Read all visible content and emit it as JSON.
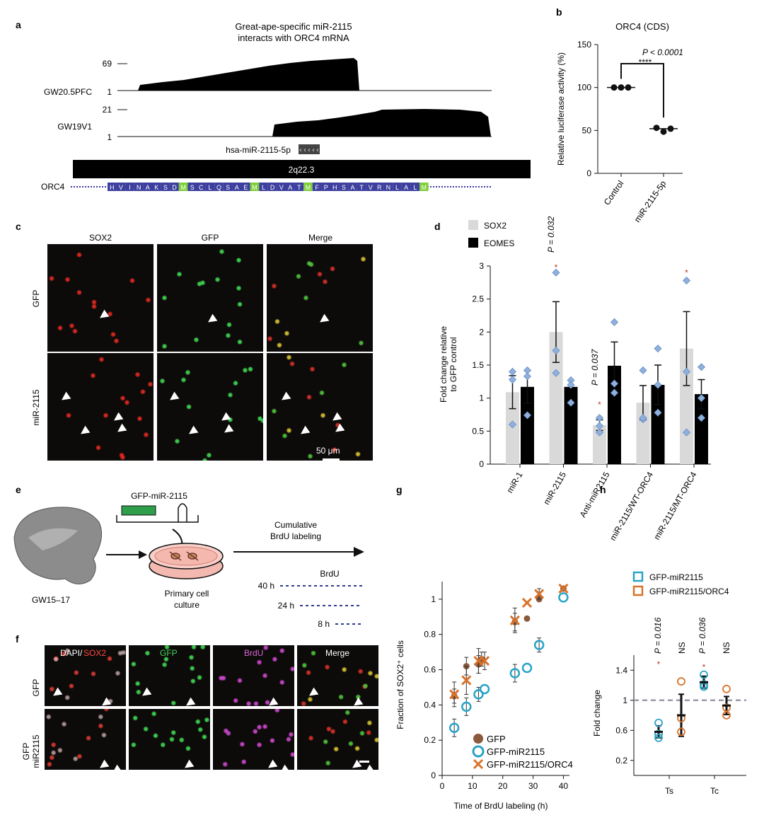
{
  "panels": {
    "a": {
      "letter": "a",
      "title_line1": "Great-ape-specific miR-2115",
      "title_line2": "interacts with ORC4 mRNA",
      "track1_name": "GW20.5PFC",
      "track1_max": "69",
      "track1_min": "1",
      "track2_name": "GW19V1",
      "track2_max": "21",
      "track2_min": "1",
      "mirna_label": "hsa-miR-2115-5p",
      "band_label": "2q22.3",
      "gene_label": "ORC4",
      "aa_sequence": [
        "H",
        "V",
        "I",
        "N",
        "A",
        "K",
        "S",
        "D",
        "M",
        "S",
        "C",
        "L",
        "Q",
        "S",
        "A",
        "E",
        "M",
        "L",
        "D",
        "V",
        "A",
        "T",
        "M",
        "F",
        "P",
        "H",
        "S",
        "A",
        "T",
        "V",
        "R",
        "N",
        "L",
        "A",
        "L",
        "M"
      ]
    },
    "b": {
      "letter": "b",
      "title": "ORC4 (CDS)",
      "ylabel": "Relative luciferase activity (%)",
      "pvalue": "P < 0.0001",
      "stars": "****"
    },
    "c": {
      "letter": "c",
      "col_labels": [
        "SOX2",
        "GFP",
        "Merge"
      ],
      "row_labels": [
        "GFP",
        "miR-2115"
      ],
      "scalebar": "50 μm"
    },
    "d": {
      "letter": "d",
      "ylabel_line1": "Fold change relative",
      "ylabel_line2": "to GFP control",
      "legend": [
        "SOX2",
        "EOMES"
      ],
      "p1": "P = 0.032",
      "p2": "P = 0.037",
      "star": "*"
    },
    "e": {
      "letter": "e",
      "construct": "GFP-miR-2115",
      "age": "GW15–17",
      "culture_line1": "Primary cell",
      "culture_line2": "culture",
      "arrow_line1": "Cumulative",
      "arrow_line2": "BrdU labeling",
      "brdu_title": "BrdU",
      "times": [
        "40 h",
        "24 h",
        "8 h"
      ]
    },
    "f": {
      "letter": "f",
      "col_labels": [
        "DAPI/",
        "SOX2",
        "GFP",
        "BrdU",
        "Merge"
      ],
      "row_labels": [
        "GFP",
        "GFP",
        "miR2115"
      ]
    },
    "g": {
      "letter": "g",
      "ylabel": "Fraction of SOX2⁺ cells",
      "xlabel": "Time of BrdU labeling (h)"
    },
    "h": {
      "letter": "h",
      "ylabel": "Fold change",
      "legend": [
        "GFP-miR2115",
        "GFP-miR2115/ORC4"
      ],
      "p1": "P = 0.016",
      "ns1": "NS",
      "p2": "P = 0.036",
      "ns2": "NS",
      "star": "*"
    }
  },
  "chart_data": [
    {
      "panel": "b",
      "type": "scatter",
      "title": "ORC4 (CDS)",
      "ylabel": "Relative luciferase activity (%)",
      "ylim": [
        0,
        150
      ],
      "yticks": [
        0,
        50,
        100,
        150
      ],
      "categories": [
        "Control",
        "miR-2115-5p"
      ],
      "points": [
        [
          100,
          100,
          100
        ],
        [
          53,
          51,
          52
        ]
      ],
      "means": [
        100,
        52
      ],
      "colors": {
        "points": "#111111"
      }
    },
    {
      "panel": "d",
      "type": "bar",
      "ylim": [
        0,
        3
      ],
      "yticks": [
        0,
        0.5,
        1,
        1.5,
        2,
        2.5,
        3
      ],
      "categories": [
        "miR-1",
        "miR-2115",
        "Anti-miR2115",
        "miR-2115/WT-ORC4",
        "miR-2115/MT-ORC4"
      ],
      "series": [
        {
          "name": "SOX2",
          "color": "#d9d9d9",
          "values": [
            1.09,
            2.0,
            0.59,
            0.93,
            1.75
          ],
          "errors": [
            0.25,
            0.46,
            0.08,
            0.26,
            0.56
          ],
          "points": [
            [
              1.4,
              1.28,
              0.6
            ],
            [
              2.9,
              1.38,
              1.72
            ],
            [
              0.7,
              0.48,
              0.58
            ],
            [
              1.42,
              0.68,
              0.7
            ],
            [
              2.78,
              1.4,
              0.48
            ]
          ]
        },
        {
          "name": "EOMES",
          "color": "#000000",
          "values": [
            1.17,
            1.17,
            1.49,
            1.2,
            1.06
          ],
          "errors": [
            0.25,
            0.0,
            0.36,
            0.3,
            0.22
          ],
          "points": [
            [
              1.42,
              1.33,
              0.74
            ],
            [
              1.27,
              1.2,
              0.93
            ],
            [
              2.15,
              1.22,
              1.08
            ],
            [
              1.75,
              1.2,
              0.78
            ],
            [
              1.47,
              1.0,
              0.7
            ]
          ]
        }
      ],
      "point_color": "#8fb0dc",
      "star_color": "#c0392b"
    },
    {
      "panel": "g",
      "type": "scatter",
      "ylabel": "Fraction of SOX2⁺ cells",
      "xlabel": "Time of BrdU labeling (h)",
      "xlim": [
        0,
        42
      ],
      "ylim": [
        0,
        1.1
      ],
      "xticks": [
        0,
        10,
        20,
        30,
        40
      ],
      "yticks": [
        0,
        0.2,
        0.4,
        0.6,
        0.8,
        1
      ],
      "series": [
        {
          "name": "GFP",
          "marker": "dot",
          "color": "#8b5a3c",
          "x": [
            4,
            8,
            12,
            13,
            24,
            28,
            32,
            40
          ],
          "y": [
            0.45,
            0.62,
            0.63,
            0.66,
            0.87,
            0.89,
            1.0,
            1.06
          ],
          "err": [
            0.04,
            0.05,
            0.05,
            0.04,
            0.05,
            0.0,
            0.0,
            0.0
          ]
        },
        {
          "name": "GFP-miR2115",
          "marker": "circle",
          "color": "#2aa3c6",
          "x": [
            4,
            8,
            12,
            14,
            24,
            28,
            32,
            40
          ],
          "y": [
            0.27,
            0.39,
            0.46,
            0.49,
            0.58,
            0.61,
            0.74,
            1.01
          ],
          "err": [
            0.05,
            0.05,
            0.04,
            0.0,
            0.05,
            0.0,
            0.04,
            0.0
          ]
        },
        {
          "name": "GFP-miR2115/ORC4",
          "marker": "x",
          "color": "#d9722a",
          "x": [
            4,
            8,
            12,
            14,
            24,
            28,
            32,
            40
          ],
          "y": [
            0.46,
            0.54,
            0.65,
            0.65,
            0.88,
            0.98,
            1.03,
            1.06
          ],
          "err": [
            0.07,
            0.08,
            0.07,
            0.05,
            0.07,
            0.0,
            0.03,
            0.0
          ]
        }
      ]
    },
    {
      "panel": "h",
      "type": "scatter",
      "ylabel": "Fold change",
      "ylim": [
        0,
        1.6
      ],
      "yticks": [
        0.2,
        0.6,
        1,
        1.4
      ],
      "categories": [
        "Ts",
        "Tc"
      ],
      "reference_line": 1,
      "series": [
        {
          "name": "GFP-miR2115",
          "color": "#2aa3c6",
          "means": [
            0.58,
            1.24
          ],
          "errors": [
            0.08,
            0.08
          ],
          "points": [
            [
              0.7,
              0.55,
              0.5
            ],
            [
              1.34,
              1.21,
              1.18
            ]
          ]
        },
        {
          "name": "GFP-miR2115/ORC4",
          "color": "#d9722a",
          "means": [
            0.8,
            0.93
          ],
          "errors": [
            0.28,
            0.12
          ],
          "points": [
            [
              1.25,
              0.76,
              0.58
            ],
            [
              1.15,
              0.9,
              0.8
            ]
          ]
        }
      ]
    }
  ]
}
